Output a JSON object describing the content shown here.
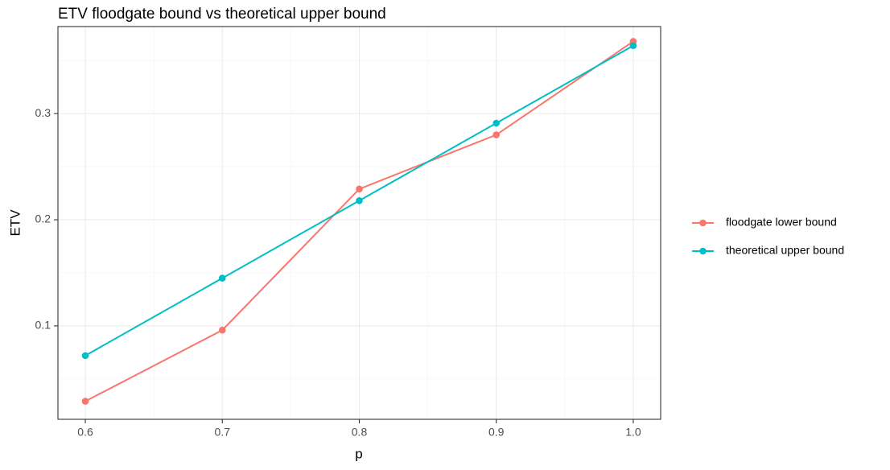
{
  "chart_data": {
    "type": "line",
    "title": "ETV floodgate bound vs theoretical upper bound",
    "xlabel": "p",
    "ylabel": "ETV",
    "x": [
      0.6,
      0.7,
      0.8,
      0.9,
      1.0
    ],
    "x_ticks": [
      "0.6",
      "0.7",
      "0.8",
      "0.9",
      "1.0"
    ],
    "y_ticks": [
      "0.1",
      "0.2",
      "0.3"
    ],
    "xlim": [
      0.58,
      1.02
    ],
    "ylim": [
      0.012,
      0.382
    ],
    "grid": true,
    "legend_position": "right",
    "series": [
      {
        "name": "floodgate lower bound",
        "color": "#F8766D",
        "values": [
          0.029,
          0.096,
          0.229,
          0.28,
          0.368
        ]
      },
      {
        "name": "theoretical upper bound",
        "color": "#00BFC4",
        "values": [
          0.072,
          0.145,
          0.218,
          0.291,
          0.364
        ]
      }
    ]
  }
}
